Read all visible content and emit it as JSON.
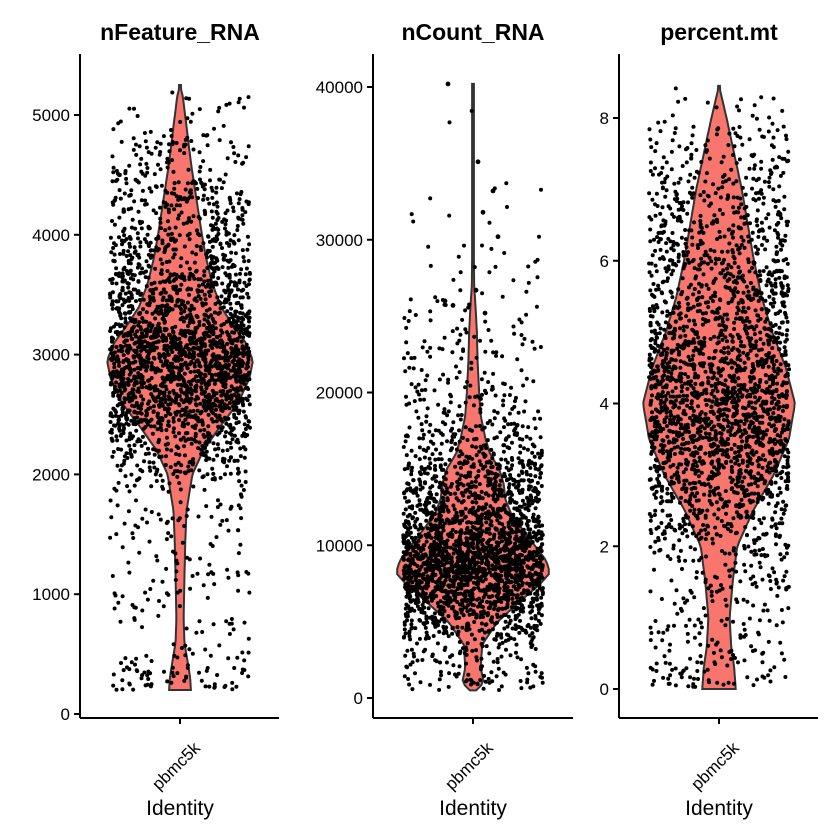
{
  "chart_data": [
    {
      "type": "violin",
      "title": "nFeature_RNA",
      "xlabel": "Identity",
      "ylabel": "",
      "category": "pbmc5k",
      "color": "#F8766D",
      "ylim": [
        0,
        5250
      ],
      "yticks": [
        0,
        1000,
        2000,
        3000,
        4000,
        5000
      ],
      "range": [
        200,
        5250
      ],
      "density": [
        [
          200,
          0.15
        ],
        [
          300,
          0.14
        ],
        [
          450,
          0.1
        ],
        [
          600,
          0.06
        ],
        [
          800,
          0.05
        ],
        [
          1100,
          0.06
        ],
        [
          1400,
          0.07
        ],
        [
          1700,
          0.09
        ],
        [
          2000,
          0.17
        ],
        [
          2200,
          0.32
        ],
        [
          2400,
          0.55
        ],
        [
          2600,
          0.8
        ],
        [
          2800,
          0.95
        ],
        [
          2950,
          1.0
        ],
        [
          3100,
          0.9
        ],
        [
          3250,
          0.72
        ],
        [
          3400,
          0.56
        ],
        [
          3600,
          0.44
        ],
        [
          3800,
          0.36
        ],
        [
          4000,
          0.3
        ],
        [
          4200,
          0.25
        ],
        [
          4400,
          0.2
        ],
        [
          4600,
          0.15
        ],
        [
          4800,
          0.11
        ],
        [
          5000,
          0.07
        ],
        [
          5150,
          0.04
        ],
        [
          5250,
          0.0
        ]
      ]
    },
    {
      "type": "violin",
      "title": "nCount_RNA",
      "xlabel": "Identity",
      "ylabel": "",
      "category": "pbmc5k",
      "color": "#F8766D",
      "ylim": [
        0,
        40000
      ],
      "yticks": [
        0,
        10000,
        20000,
        30000,
        40000
      ],
      "range": [
        500,
        40200
      ],
      "density": [
        [
          500,
          0.04
        ],
        [
          1000,
          0.14
        ],
        [
          2000,
          0.1
        ],
        [
          3500,
          0.12
        ],
        [
          5000,
          0.32
        ],
        [
          6500,
          0.65
        ],
        [
          7500,
          0.88
        ],
        [
          8200,
          1.0
        ],
        [
          9000,
          0.95
        ],
        [
          10000,
          0.8
        ],
        [
          11000,
          0.65
        ],
        [
          12000,
          0.5
        ],
        [
          13000,
          0.42
        ],
        [
          14000,
          0.4
        ],
        [
          15000,
          0.34
        ],
        [
          16000,
          0.22
        ],
        [
          17000,
          0.16
        ],
        [
          18500,
          0.1
        ],
        [
          20000,
          0.08
        ],
        [
          22000,
          0.06
        ],
        [
          24000,
          0.05
        ],
        [
          25500,
          0.035
        ],
        [
          27000,
          0.015
        ],
        [
          30000,
          0.01
        ],
        [
          35000,
          0.008
        ],
        [
          40200,
          0.0
        ]
      ],
      "outliers": [
        [
          -0.25,
          40200
        ],
        [
          0.05,
          35100
        ],
        [
          0.2,
          33200
        ],
        [
          0.1,
          31800
        ],
        [
          0.25,
          30200
        ],
        [
          0.03,
          26700
        ],
        [
          -0.28,
          26000
        ],
        [
          -0.2,
          25700
        ],
        [
          0.12,
          25200
        ]
      ]
    },
    {
      "type": "violin",
      "title": "percent.mt",
      "xlabel": "Identity",
      "ylabel": "",
      "category": "pbmc5k",
      "color": "#F8766D",
      "ylim": [
        0,
        8.5
      ],
      "yticks": [
        0,
        2,
        4,
        6,
        8
      ],
      "range": [
        0,
        8.45
      ],
      "density": [
        [
          0.0,
          0.22
        ],
        [
          0.3,
          0.2
        ],
        [
          0.6,
          0.16
        ],
        [
          1.0,
          0.14
        ],
        [
          1.5,
          0.18
        ],
        [
          2.0,
          0.24
        ],
        [
          2.5,
          0.45
        ],
        [
          3.0,
          0.72
        ],
        [
          3.5,
          0.92
        ],
        [
          4.0,
          1.0
        ],
        [
          4.5,
          0.88
        ],
        [
          5.0,
          0.7
        ],
        [
          5.5,
          0.56
        ],
        [
          6.0,
          0.46
        ],
        [
          6.5,
          0.38
        ],
        [
          7.0,
          0.3
        ],
        [
          7.5,
          0.2
        ],
        [
          8.0,
          0.1
        ],
        [
          8.45,
          0.0
        ]
      ]
    }
  ]
}
